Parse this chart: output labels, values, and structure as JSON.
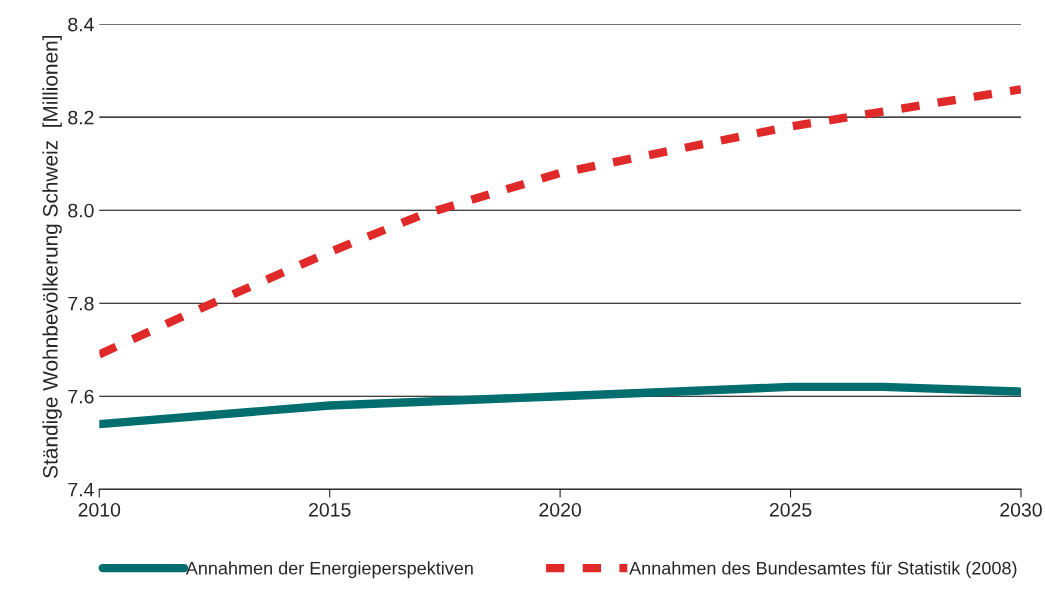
{
  "chart_data": {
    "type": "line",
    "ylabel": "Ständige Wohnbevölkerung Schweiz  [Millionen]",
    "xlim": [
      2010,
      2030
    ],
    "xticks": [
      2010,
      2015,
      2020,
      2025,
      2030
    ],
    "ylim": [
      7.4,
      8.4
    ],
    "yticks": [
      7.4,
      7.6,
      7.8,
      {
        "value": 8.0,
        "label": "8.0"
      },
      8.2,
      8.4
    ],
    "grid": "y",
    "legend": "bottom",
    "series": [
      {
        "name": "Annahmen der Energieperspektiven",
        "color": "#006e6e",
        "line_style": "solid",
        "x": [
          2010,
          2015,
          2020,
          2025,
          2027,
          2030
        ],
        "values": [
          7.54,
          7.58,
          7.6,
          7.62,
          7.62,
          7.61
        ]
      },
      {
        "name": "Annahmen des Bundesamtes für Statistik (2008)",
        "color": "#e02a2a",
        "line_style": "dashed",
        "x": [
          2010,
          2012,
          2015,
          2017,
          2020,
          2025,
          2030
        ],
        "values": [
          7.69,
          7.78,
          7.91,
          7.99,
          8.08,
          8.18,
          8.26
        ]
      }
    ]
  }
}
